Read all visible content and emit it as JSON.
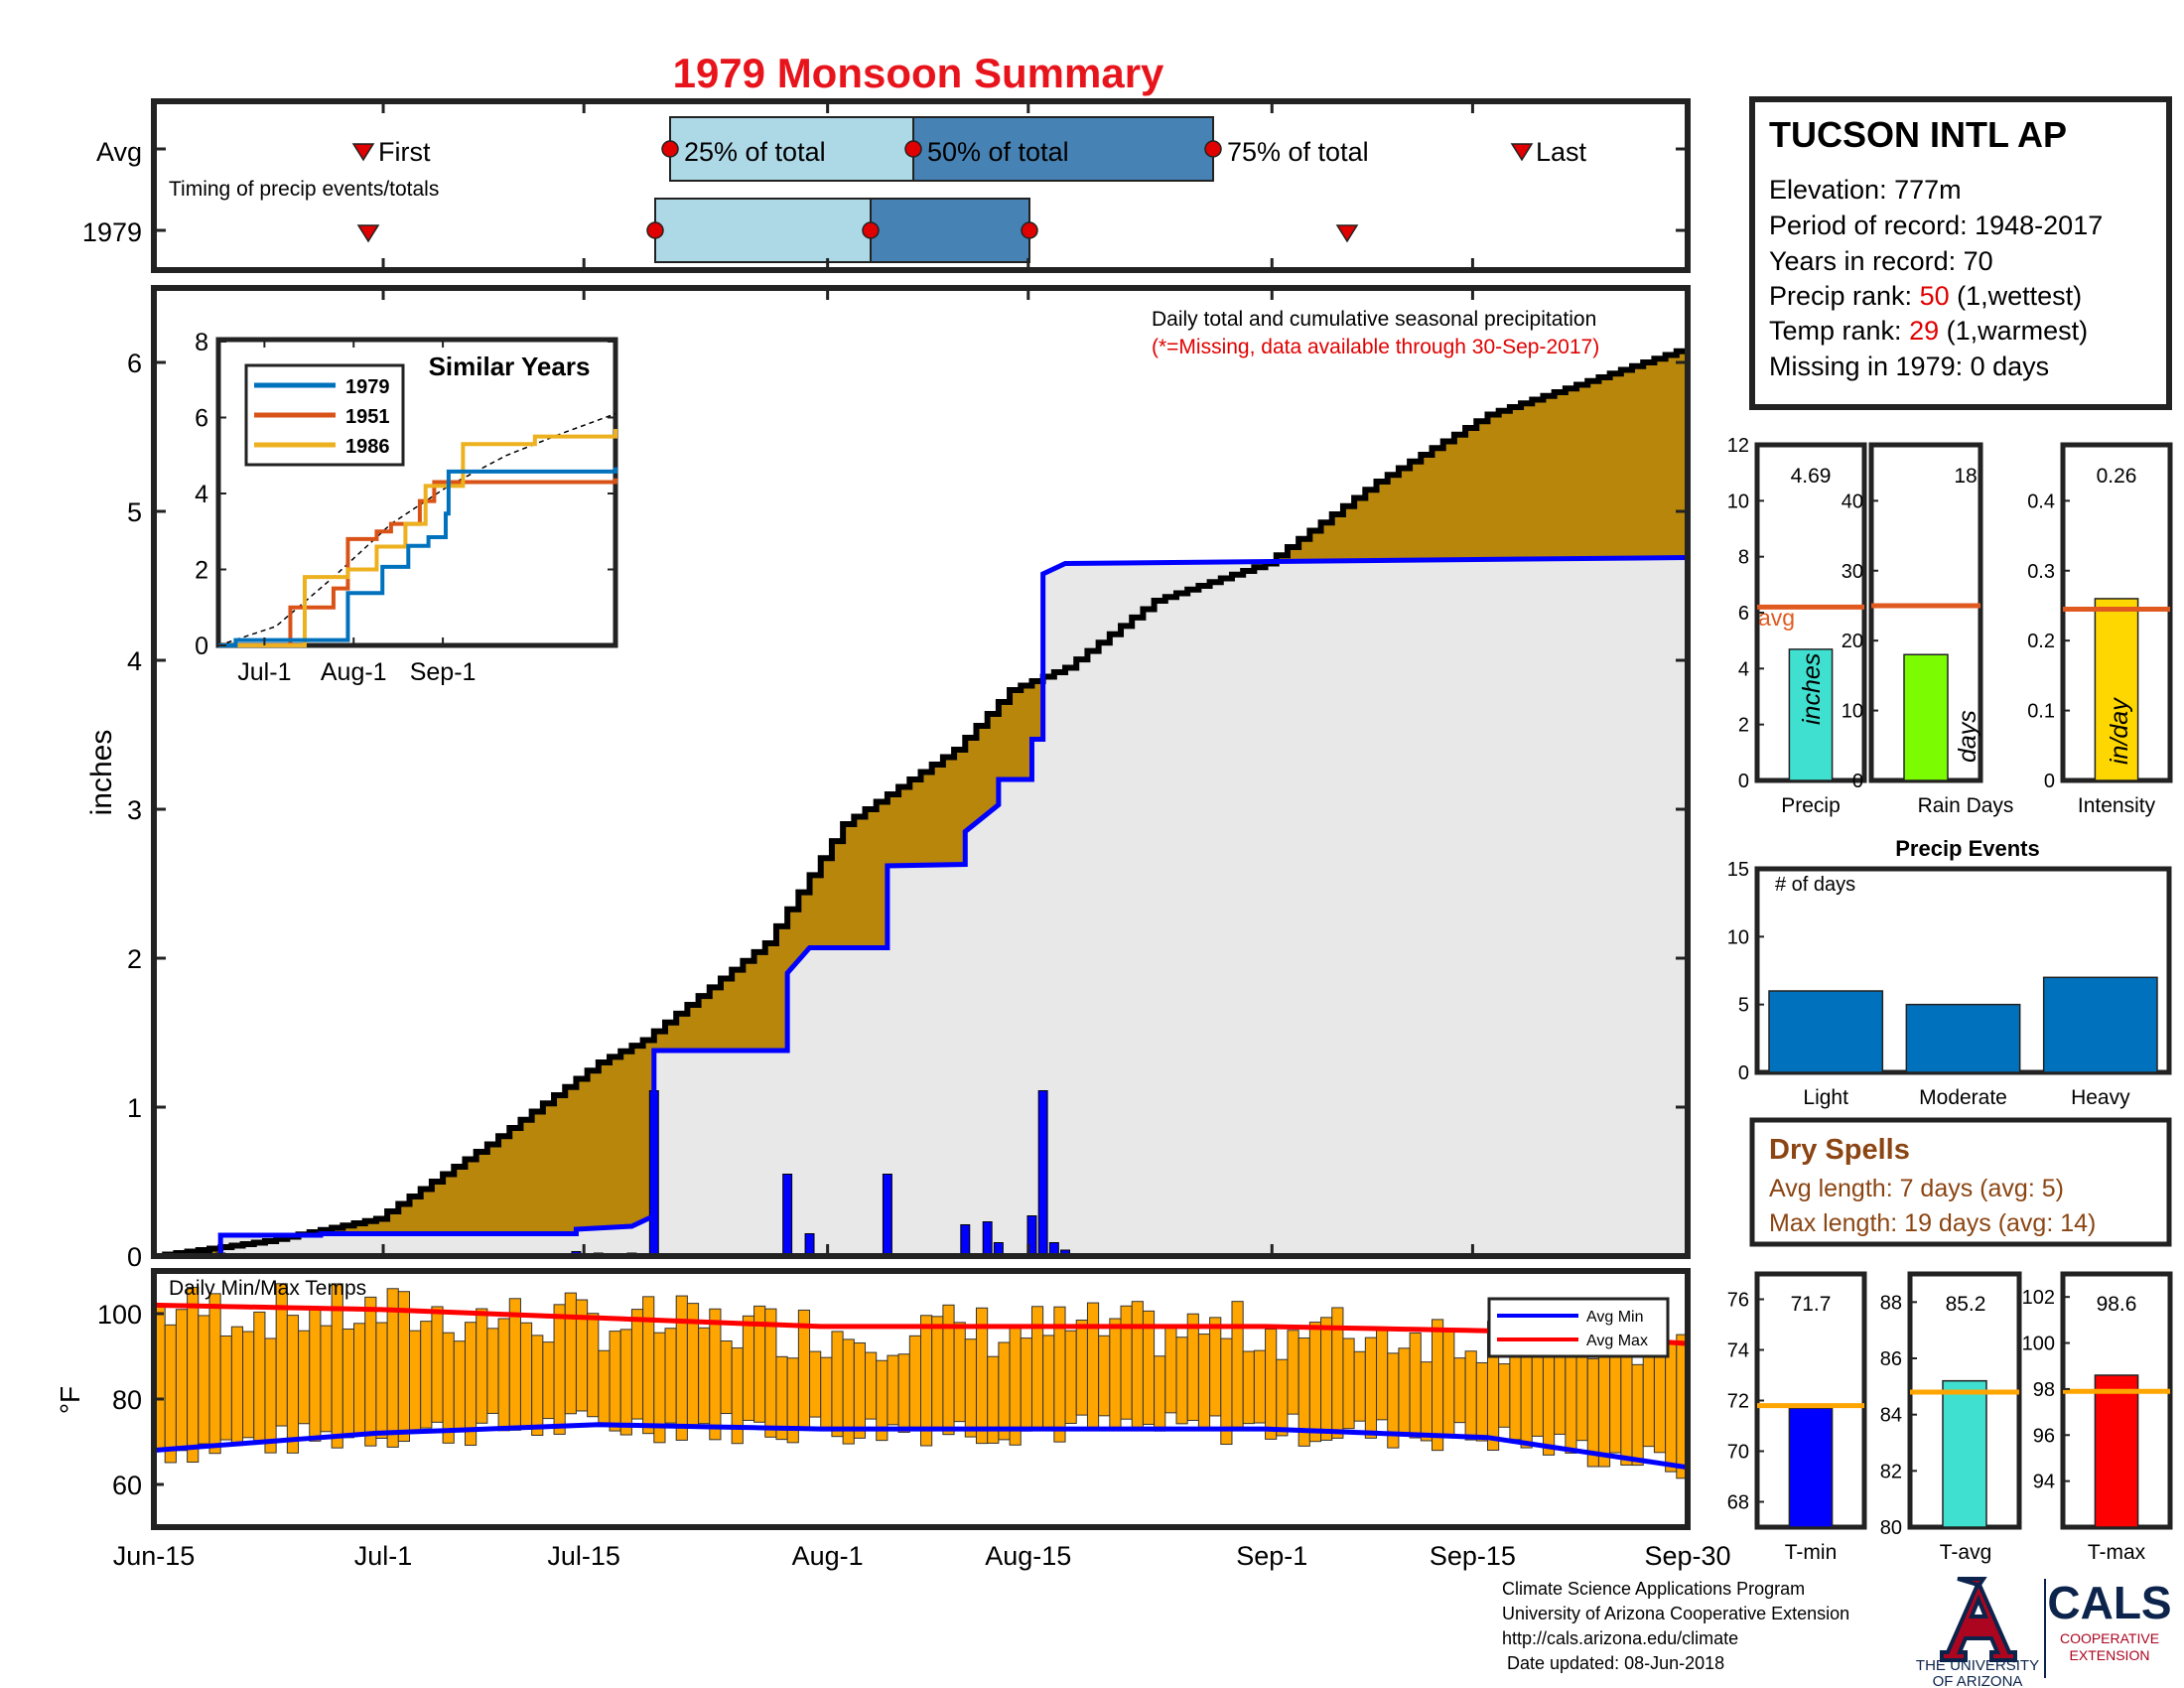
{
  "title": "1979 Monsoon Summary",
  "colors": {
    "title": "#e8141c",
    "brown": "#b8860b",
    "green": "#228b22",
    "blue": "#0000ff",
    "gray": "#e8e8e8",
    "light_blue": "#add8e6",
    "steel_blue": "#4682b4",
    "orange_bar": "#ffa500",
    "avg_line": "#e05a20",
    "red_marker": "#e00000",
    "text_red": "#e00000",
    "series_1979": "#0072bd",
    "series_1951": "#d95319",
    "series_1986": "#edb120",
    "dry_spells_text": "#8b4513"
  },
  "timing_panel": {
    "avg_label": "Avg",
    "year_label": "1979",
    "subtitle": "Timing of precip events/totals",
    "first_label": "First",
    "last_label": "Last",
    "q25_label": "25% of total",
    "q50_label": "50% of total",
    "q75_label": "75% of total",
    "avg_markers": {
      "first": "Jun-30",
      "q25": "Jul-26",
      "q50": "Aug-6",
      "q75": "Aug-24",
      "last": "Sep-17"
    },
    "year_markers": {
      "first": "Jun-30",
      "q25": "Jul-19",
      "q50": "Aug-3",
      "q75": "Aug-15",
      "last": "Sep-5"
    }
  },
  "main_panel": {
    "ylabel": "inches",
    "legend_title": "Daily total and cumulative seasonal precipitation",
    "legend_note": "(*=Missing, data available through 30-Sep-2017)",
    "yticks": [
      "0",
      "1",
      "2",
      "3",
      "4",
      "5",
      "6"
    ],
    "x_ticks": [
      "Jun-15",
      "Jul-1",
      "Jul-15",
      "Aug-1",
      "Aug-15",
      "Sep-1",
      "Sep-15",
      "Sep-30"
    ]
  },
  "inset": {
    "title": "Similar Years",
    "legend": [
      "1979",
      "1951",
      "1986"
    ],
    "yticks": [
      "0",
      "2",
      "4",
      "6",
      "8"
    ],
    "xticks": [
      "Jul-1",
      "Aug-1",
      "Sep-1"
    ]
  },
  "temp_panel": {
    "label": "Daily Min/Max Temps",
    "ylabel": "°F",
    "yticks": [
      "60",
      "80",
      "100"
    ],
    "legend_min": "Avg Min",
    "legend_max": "Avg Max"
  },
  "station": {
    "name": "TUCSON INTL AP",
    "elevation": "Elevation: 777m",
    "period": "Period of record: 1948-2017",
    "years": "Years in record: 70",
    "precip_rank_prefix": "Precip rank: ",
    "precip_rank_value": "50",
    "precip_rank_suffix": " (1,wettest)",
    "temp_rank_prefix": "Temp rank: ",
    "temp_rank_value": "29",
    "temp_rank_suffix": " (1,warmest)",
    "missing": "Missing in 1979: 0 days"
  },
  "mini_precip": {
    "precip": {
      "value_label": "4.69",
      "inner_label": "inches",
      "xlabel": "Precip",
      "avg_label": "avg",
      "yticks": [
        "0",
        "2",
        "4",
        "6",
        "8",
        "10",
        "12"
      ]
    },
    "rain_days": {
      "value_label": "18",
      "inner_label": "days",
      "xlabel": "Rain Days",
      "yticks": [
        "0",
        "10",
        "20",
        "30",
        "40"
      ]
    },
    "intensity": {
      "value_label": "0.26",
      "inner_label": "in/day",
      "xlabel": "Intensity",
      "yticks": [
        "0",
        "0.1",
        "0.2",
        "0.3",
        "0.4"
      ]
    }
  },
  "precip_events": {
    "title": "Precip Events",
    "ylabel_inner": "# of days",
    "yticks": [
      "0",
      "5",
      "10",
      "15"
    ],
    "categories": [
      "Light",
      "Moderate",
      "Heavy"
    ]
  },
  "dry_spells": {
    "title": "Dry Spells",
    "avg_length": "Avg length: 7 days (avg: 5)",
    "max_length": "Max length: 19 days (avg: 14)"
  },
  "mini_temps": {
    "tmin": {
      "value_label": "71.7",
      "xlabel": "T-min",
      "yticks": [
        "68",
        "70",
        "72",
        "74",
        "76"
      ]
    },
    "tavg": {
      "value_label": "85.2",
      "xlabel": "T-avg",
      "yticks": [
        "80",
        "82",
        "84",
        "86",
        "88"
      ]
    },
    "tmax": {
      "value_label": "98.6",
      "xlabel": "T-max",
      "yticks": [
        "94",
        "96",
        "98",
        "100",
        "102"
      ]
    }
  },
  "footer": {
    "line1": "Climate Science Applications Program",
    "line2": "University of Arizona Cooperative Extension",
    "line3": "http://cals.arizona.edu/climate",
    "line4": " Date updated: 08-Jun-2018",
    "ua_line1": "THE UNIVERSITY",
    "ua_line2": "OF ARIZONA",
    "cals": "CALS",
    "cals_sub1": "COOPERATIVE",
    "cals_sub2": "EXTENSION"
  },
  "chart_data": [
    {
      "type": "area",
      "name": "cumulative",
      "x_range": [
        "Jun-15",
        "Sep-30"
      ],
      "ylim": [
        0,
        6.5
      ],
      "ylabel": "inches",
      "observed_cumulative_day_value": [
        [
          0,
          0
        ],
        [
          10,
          0.1
        ],
        [
          20,
          0.25
        ],
        [
          30,
          0.75
        ],
        [
          40,
          1.3
        ],
        [
          44,
          1.45
        ],
        [
          55,
          2.1
        ],
        [
          62,
          2.9
        ],
        [
          72,
          3.4
        ],
        [
          77,
          3.8
        ],
        [
          82,
          3.95
        ],
        [
          90,
          4.4
        ],
        [
          100,
          4.65
        ],
        [
          110,
          5.2
        ],
        [
          120,
          5.65
        ],
        [
          130,
          5.9
        ],
        [
          138,
          6.1
        ]
      ],
      "avg_cumulative_day_value": [
        [
          0,
          0
        ],
        [
          10,
          0.1
        ],
        [
          20,
          0.25
        ],
        [
          30,
          0.75
        ],
        [
          40,
          1.3
        ],
        [
          44,
          1.45
        ],
        [
          55,
          2.1
        ],
        [
          62,
          2.9
        ],
        [
          72,
          3.4
        ],
        [
          77,
          3.8
        ],
        [
          82,
          3.95
        ],
        [
          90,
          4.4
        ],
        [
          100,
          4.65
        ],
        [
          110,
          5.2
        ],
        [
          120,
          5.65
        ],
        [
          130,
          5.9
        ],
        [
          138,
          6.1
        ]
      ],
      "year_1979_cumulative_day_value": [
        [
          0,
          0
        ],
        [
          6,
          0
        ],
        [
          6,
          0.14
        ],
        [
          15,
          0.14
        ],
        [
          15,
          0.15
        ],
        [
          38,
          0.15
        ],
        [
          38,
          0.18
        ],
        [
          43,
          0.2
        ],
        [
          45,
          0.27
        ],
        [
          45,
          1.38
        ],
        [
          57,
          1.38
        ],
        [
          57,
          1.9
        ],
        [
          59,
          2.07
        ],
        [
          66,
          2.07
        ],
        [
          66,
          2.62
        ],
        [
          73,
          2.63
        ],
        [
          73,
          2.85
        ],
        [
          76,
          3.03
        ],
        [
          76,
          3.2
        ],
        [
          79,
          3.2
        ],
        [
          79,
          3.47
        ],
        [
          80,
          3.47
        ],
        [
          80,
          4.58
        ],
        [
          82,
          4.65
        ],
        [
          110,
          4.67
        ],
        [
          138,
          4.69
        ]
      ],
      "daily_bars_day_value": [
        [
          6,
          0.02
        ],
        [
          15,
          0.01
        ],
        [
          38,
          0.03
        ],
        [
          40,
          0.02
        ],
        [
          43,
          0.02
        ],
        [
          45,
          1.11
        ],
        [
          57,
          0.55
        ],
        [
          59,
          0.15
        ],
        [
          66,
          0.55
        ],
        [
          73,
          0.21
        ],
        [
          75,
          0.23
        ],
        [
          76,
          0.09
        ],
        [
          79,
          0.27
        ],
        [
          80,
          1.11
        ],
        [
          81,
          0.09
        ],
        [
          82,
          0.04
        ],
        [
          110,
          0.01
        ]
      ]
    },
    {
      "type": "line",
      "name": "similar years inset",
      "categories": [
        "Jul-1",
        "Aug-1",
        "Sep-1"
      ],
      "ylim": [
        0,
        8
      ],
      "series": [
        {
          "name": "1979",
          "day_value": [
            [
              0,
              0
            ],
            [
              6,
              0
            ],
            [
              6,
              0.14
            ],
            [
              15,
              0.14
            ],
            [
              45,
              1.38
            ],
            [
              57,
              2.07
            ],
            [
              66,
              2.62
            ],
            [
              73,
              2.85
            ],
            [
              79,
              3.47
            ],
            [
              80,
              4.58
            ],
            [
              138,
              4.69
            ]
          ]
        },
        {
          "name": "1951",
          "day_value": [
            [
              0,
              0
            ],
            [
              20,
              0
            ],
            [
              25,
              1.0
            ],
            [
              40,
              1.5
            ],
            [
              45,
              2.8
            ],
            [
              55,
              3.0
            ],
            [
              60,
              3.2
            ],
            [
              70,
              3.8
            ],
            [
              75,
              4.3
            ],
            [
              138,
              4.4
            ]
          ]
        },
        {
          "name": "1986",
          "day_value": [
            [
              0,
              0
            ],
            [
              25,
              0
            ],
            [
              30,
              1.8
            ],
            [
              45,
              2.0
            ],
            [
              55,
              2.6
            ],
            [
              65,
              3.2
            ],
            [
              72,
              4.2
            ],
            [
              85,
              5.3
            ],
            [
              110,
              5.5
            ],
            [
              138,
              5.7
            ]
          ]
        },
        {
          "name": "avg",
          "day_value": [
            [
              0,
              0
            ],
            [
              20,
              0.5
            ],
            [
              40,
              1.8
            ],
            [
              60,
              3.2
            ],
            [
              80,
              4.2
            ],
            [
              100,
              5.0
            ],
            [
              120,
              5.6
            ],
            [
              138,
              6.1
            ]
          ]
        }
      ]
    },
    {
      "type": "bar",
      "name": "daily temperatures",
      "ylim": [
        50,
        110
      ],
      "ylabel": "°F",
      "avg_min_day_value": [
        [
          0,
          68
        ],
        [
          20,
          72
        ],
        [
          40,
          74
        ],
        [
          60,
          73
        ],
        [
          80,
          73
        ],
        [
          100,
          73
        ],
        [
          120,
          71
        ],
        [
          138,
          64
        ]
      ],
      "avg_max_day_value": [
        [
          0,
          102
        ],
        [
          20,
          101
        ],
        [
          40,
          99
        ],
        [
          60,
          97
        ],
        [
          80,
          97
        ],
        [
          100,
          97
        ],
        [
          120,
          96
        ],
        [
          138,
          93
        ]
      ]
    },
    {
      "type": "bar",
      "name": "season totals",
      "categories": [
        "Precip",
        "Rain Days",
        "Intensity"
      ],
      "values": [
        4.69,
        18,
        0.26
      ],
      "averages": [
        6.2,
        25,
        0.245
      ],
      "ylims": [
        [
          0,
          12
        ],
        [
          0,
          48
        ],
        [
          0,
          0.48
        ]
      ]
    },
    {
      "type": "bar",
      "name": "precip events",
      "categories": [
        "Light",
        "Moderate",
        "Heavy"
      ],
      "values": [
        6,
        5,
        7
      ],
      "ylim": [
        0,
        15
      ]
    },
    {
      "type": "bar",
      "name": "mean temperatures",
      "categories": [
        "T-min",
        "T-avg",
        "T-max"
      ],
      "values": [
        71.7,
        85.2,
        98.6
      ],
      "averages": [
        71.8,
        84.8,
        97.9
      ],
      "ylims": [
        [
          67,
          77
        ],
        [
          80,
          89
        ],
        [
          92,
          103
        ]
      ]
    }
  ]
}
